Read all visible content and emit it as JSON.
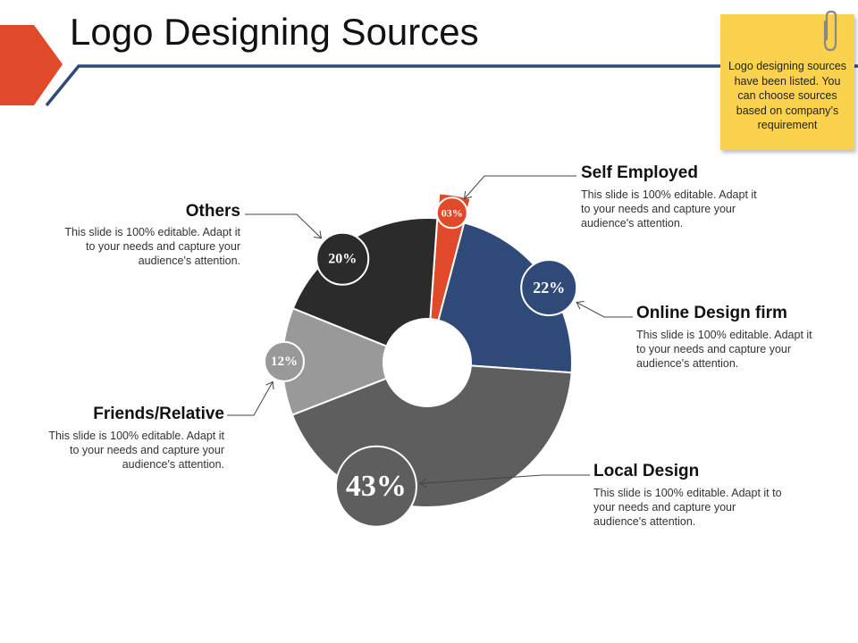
{
  "title": "Logo Designing Sources",
  "note": "Logo designing sources have been listed. You can choose sources based on company’s requirement",
  "colors": {
    "accent_red": "#e04a2a",
    "rule_navy": "#2f4a78",
    "note_yellow": "#fbd24e"
  },
  "chart_data": {
    "type": "pie",
    "style": "donut",
    "title": "",
    "categories": [
      "Self Employed",
      "Online Design firm",
      "Local Design",
      "Friends/Relative",
      "Others"
    ],
    "values": [
      3,
      22,
      43,
      12,
      20
    ],
    "value_labels": [
      "03%",
      "22%",
      "43%",
      "12%",
      "20%"
    ],
    "colors": [
      "#e04a2a",
      "#2f4a78",
      "#5e5e5e",
      "#999999",
      "#2b2b2b"
    ],
    "legend": "callouts"
  },
  "labels": [
    {
      "title": "Self Employed",
      "desc": "This slide is 100% editable. Adapt it to your needs and capture your audience's attention."
    },
    {
      "title": "Online Design firm",
      "desc": "This slide is 100% editable. Adapt it to your needs and capture your audience's attention."
    },
    {
      "title": "Local Design",
      "desc": "This slide is 100% editable. Adapt it to your needs and capture your audience's attention."
    },
    {
      "title": "Friends/Relative",
      "desc": "This slide is 100% editable. Adapt it to your needs and capture your audience's attention."
    },
    {
      "title": "Others",
      "desc": "This slide is 100% editable. Adapt it to your needs and capture your audience's attention."
    }
  ]
}
